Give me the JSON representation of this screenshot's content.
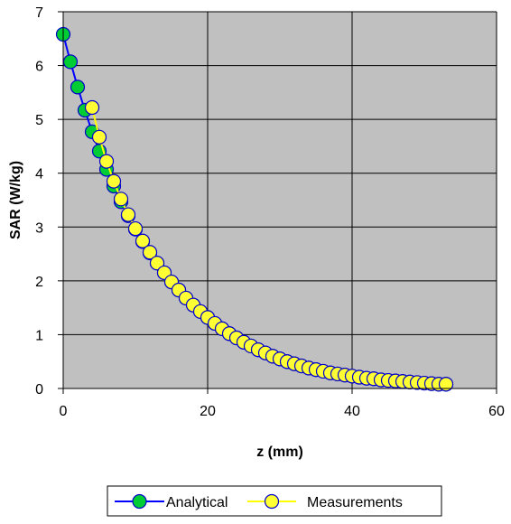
{
  "colors": {
    "plot_background": "#C0C0C0",
    "grid": "#000000",
    "analytical_line": "#0000FF",
    "analytical_marker": "#00CC33",
    "measurement_line": "#FFFF00",
    "measurement_marker": "#FFFF33",
    "marker_edge": "#0000CC"
  },
  "chart_data": {
    "type": "line",
    "title": "",
    "xlabel": "z (mm)",
    "ylabel": "SAR (W/kg)",
    "xlim": [
      0,
      60
    ],
    "ylim": [
      0,
      7
    ],
    "xticks": [
      0,
      20,
      40,
      60
    ],
    "yticks": [
      0,
      1,
      2,
      3,
      4,
      5,
      6,
      7
    ],
    "grid": true,
    "legend_position": "bottom-center",
    "series": [
      {
        "name": "Analytical",
        "marker": "circle",
        "x": [
          0,
          1,
          2,
          3,
          4,
          5,
          6,
          7,
          8,
          9,
          10,
          11,
          12,
          13,
          14,
          15,
          16,
          17,
          18,
          19,
          20,
          21,
          22,
          23,
          24,
          25,
          26,
          27,
          28,
          29,
          30,
          31,
          32,
          33,
          34,
          35,
          36,
          37,
          38,
          39,
          40,
          41,
          42,
          43,
          44,
          45,
          46,
          47,
          48,
          49,
          50,
          51,
          52,
          53
        ],
        "y": [
          6.58,
          6.07,
          5.6,
          5.17,
          4.77,
          4.41,
          4.07,
          3.76,
          3.47,
          3.21,
          2.96,
          2.73,
          2.52,
          2.33,
          2.15,
          1.98,
          1.83,
          1.68,
          1.55,
          1.43,
          1.32,
          1.21,
          1.11,
          1.02,
          0.94,
          0.86,
          0.79,
          0.72,
          0.66,
          0.6,
          0.55,
          0.5,
          0.46,
          0.42,
          0.38,
          0.35,
          0.32,
          0.29,
          0.27,
          0.25,
          0.23,
          0.21,
          0.19,
          0.18,
          0.16,
          0.15,
          0.14,
          0.13,
          0.12,
          0.11,
          0.1,
          0.09,
          0.08,
          0.08
        ]
      },
      {
        "name": "Measurements",
        "marker": "circle",
        "x": [
          4,
          5,
          6,
          7,
          8,
          9,
          10,
          11,
          12,
          13,
          14,
          15,
          16,
          17,
          18,
          19,
          20,
          21,
          22,
          23,
          24,
          25,
          26,
          27,
          28,
          29,
          30,
          31,
          32,
          33,
          34,
          35,
          36,
          37,
          38,
          39,
          40,
          41,
          42,
          43,
          44,
          45,
          46,
          47,
          48,
          49,
          50,
          51,
          52,
          53
        ],
        "y": [
          5.22,
          4.67,
          4.22,
          3.85,
          3.52,
          3.23,
          2.97,
          2.74,
          2.53,
          2.33,
          2.15,
          1.98,
          1.83,
          1.68,
          1.55,
          1.43,
          1.32,
          1.21,
          1.11,
          1.02,
          0.94,
          0.86,
          0.79,
          0.72,
          0.66,
          0.6,
          0.55,
          0.5,
          0.46,
          0.42,
          0.38,
          0.35,
          0.32,
          0.29,
          0.27,
          0.25,
          0.23,
          0.21,
          0.19,
          0.18,
          0.16,
          0.15,
          0.14,
          0.13,
          0.12,
          0.11,
          0.1,
          0.09,
          0.08,
          0.08
        ]
      }
    ]
  }
}
